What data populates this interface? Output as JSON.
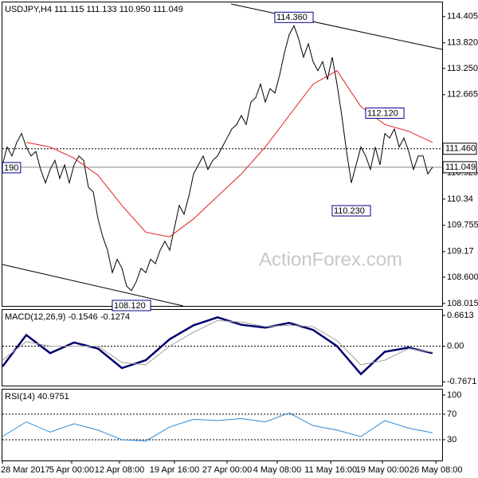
{
  "chart_data": [
    {
      "type": "line",
      "title": "USDJPY,H4  111.115 111.133 110.950 111.049",
      "watermark": "ActionForex.com",
      "x": [
        0,
        1,
        2,
        3,
        4,
        5,
        6,
        7,
        8,
        9,
        10,
        11,
        12,
        13,
        14,
        15,
        16,
        17,
        18,
        19,
        20,
        21,
        22,
        23,
        24,
        25,
        26,
        27,
        28,
        29,
        30,
        31,
        32,
        33,
        34,
        35,
        36,
        37,
        38,
        39,
        40,
        41,
        42,
        43,
        44,
        45,
        46,
        47,
        48,
        49,
        50,
        51,
        52,
        53,
        54,
        55,
        56,
        57,
        58,
        59,
        60,
        61,
        62,
        63,
        64,
        65,
        66,
        67,
        68,
        69,
        70,
        71,
        72,
        73,
        74,
        75,
        76,
        77,
        78,
        79,
        80,
        81,
        82,
        83,
        84,
        85,
        86,
        87,
        88,
        89,
        90
      ],
      "xlim": [
        0,
        92
      ],
      "xticks": [
        {
          "value": 0,
          "label": "28 Mar 2017"
        },
        {
          "value": 14.5,
          "label": "5 Apr 00:00"
        },
        {
          "value": 24.5,
          "label": "12 Apr 08:00"
        },
        {
          "value": 36,
          "label": "19 Apr 16:00"
        },
        {
          "value": 47,
          "label": "27 Apr 00:00"
        },
        {
          "value": 57.5,
          "label": "4 May 08:00"
        },
        {
          "value": 68.7,
          "label": "11 May 16:00"
        },
        {
          "value": 79.5,
          "label": "19 May 00:00"
        },
        {
          "value": 90.7,
          "label": "26 May 08:00"
        }
      ],
      "ylim": [
        107.96,
        114.72
      ],
      "yticks": [
        {
          "value": 108.015,
          "label": "108.015"
        },
        {
          "value": 108.6,
          "label": "108.600"
        },
        109.17,
        109.755,
        110.34,
        {
          "value": 110.925,
          "label": "110.925"
        },
        112.665,
        {
          "value": 113.25,
          "label": "113.250"
        },
        {
          "value": 113.82,
          "label": "113.820"
        },
        114.405
      ],
      "series": [
        {
          "color": "#000000",
          "values": [
            111.1,
            111.5,
            111.3,
            111.6,
            111.8,
            111.5,
            111.3,
            111.4,
            111.0,
            110.7,
            111.0,
            111.2,
            110.8,
            111.1,
            110.7,
            111.1,
            111.3,
            111.2,
            110.6,
            110.5,
            109.9,
            109.5,
            109.2,
            108.7,
            109.0,
            108.8,
            108.4,
            108.3,
            108.5,
            108.8,
            108.7,
            109.0,
            108.9,
            109.2,
            109.4,
            109.2,
            109.7,
            110.2,
            110.0,
            110.4,
            110.9,
            111.1,
            111.3,
            111.0,
            111.2,
            111.3,
            111.5,
            111.7,
            111.9,
            112.0,
            112.2,
            112.0,
            112.5,
            112.6,
            112.9,
            112.5,
            112.8,
            112.7,
            113.1,
            113.6,
            114.0,
            114.2,
            113.9,
            113.5,
            113.8,
            113.4,
            113.2,
            113.4,
            113.0,
            113.5,
            112.9,
            112.2,
            111.4,
            110.7,
            111.1,
            111.5,
            111.3,
            111.0,
            111.5,
            111.1,
            111.8,
            111.7,
            111.9,
            111.5,
            111.7,
            111.4,
            111.0,
            111.3,
            111.3,
            110.9,
            111.05
          ]
        },
        {
          "color": "#e0201e",
          "x": [
            5,
            10,
            15,
            20,
            25,
            30,
            35,
            40,
            45,
            50,
            55,
            60,
            65,
            70,
            75,
            80,
            85,
            90
          ],
          "values": [
            111.6,
            111.5,
            111.25,
            110.87,
            110.2,
            109.6,
            109.5,
            109.9,
            110.4,
            110.9,
            111.5,
            112.2,
            112.9,
            113.2,
            112.4,
            112.0,
            111.85,
            111.6
          ]
        }
      ],
      "hlines": [
        {
          "value": 111.46,
          "label": "111.460",
          "style": "dashed"
        },
        {
          "value": 111.049,
          "label": "111.049",
          "style": "solid"
        }
      ],
      "annotations": [
        {
          "text": "114.360",
          "x": 61,
          "y": 114.36
        },
        {
          "text": "112.120",
          "x": 80,
          "y": 112.12
        },
        {
          "text": "110.230",
          "x": 73,
          "y": 110.23
        },
        {
          "text": "108.120",
          "x": 27,
          "y": 108.12
        },
        {
          "text": "190",
          "x": 1,
          "y": 111.19
        }
      ]
    },
    {
      "type": "line",
      "title": "MACD(12,26,9) -0.1546 -0.1274",
      "x": [
        0,
        5,
        10,
        15,
        20,
        25,
        30,
        35,
        40,
        45,
        50,
        55,
        60,
        65,
        70,
        75,
        80,
        85,
        90
      ],
      "xlim": [
        0,
        92
      ],
      "ylim": [
        -0.847,
        0.78
      ],
      "yticks": [
        0.6613,
        {
          "value": 0,
          "label": "0.00"
        },
        -0.7671
      ],
      "series": [
        {
          "color": "#00006e",
          "width": 2.5,
          "values": [
            -0.44,
            0.24,
            -0.15,
            0.08,
            -0.05,
            -0.47,
            -0.3,
            0.15,
            0.45,
            0.62,
            0.46,
            0.4,
            0.5,
            0.35,
            0.0,
            -0.6,
            -0.12,
            -0.03,
            -0.15
          ]
        },
        {
          "color": "#a0a0a0",
          "width": 1,
          "values": [
            -0.3,
            0.1,
            0.0,
            0.0,
            0.0,
            -0.35,
            -0.4,
            0.0,
            0.3,
            0.55,
            0.52,
            0.42,
            0.45,
            0.42,
            0.12,
            -0.4,
            -0.3,
            -0.05,
            -0.13
          ]
        }
      ],
      "hlines": [
        {
          "value": 0,
          "style": "dashed"
        }
      ]
    },
    {
      "type": "line",
      "title": "RSI(14) 40.9751",
      "x": [
        0,
        5,
        10,
        15,
        20,
        25,
        30,
        35,
        40,
        45,
        50,
        55,
        60,
        65,
        70,
        75,
        80,
        85,
        90
      ],
      "xlim": [
        0,
        92
      ],
      "ylim": [
        -2.5,
        108.6
      ],
      "yticks": [
        100,
        70,
        30
      ],
      "series": [
        {
          "color": "#2b8ad8",
          "width": 1,
          "values": [
            35,
            58,
            42,
            55,
            45,
            30,
            28,
            50,
            62,
            60,
            63,
            58,
            72,
            52,
            45,
            35,
            60,
            48,
            41
          ]
        }
      ],
      "hlines": [
        {
          "value": 70,
          "style": "dashed"
        },
        {
          "value": 30,
          "style": "dashed"
        }
      ]
    }
  ]
}
